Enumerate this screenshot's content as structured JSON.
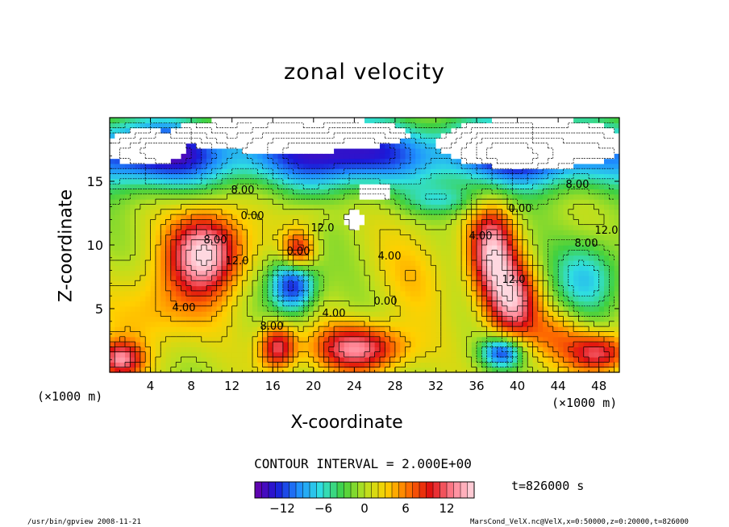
{
  "chart_data": {
    "type": "heatmap",
    "title": "zonal velocity",
    "xlabel": "X-coordinate",
    "ylabel": "Z-coordinate",
    "x_unit": "(×1000 m)",
    "y_unit": "(×1000 m)",
    "xlim": [
      0,
      50
    ],
    "ylim": [
      0,
      20
    ],
    "x_ticks": [
      "4",
      "8",
      "12",
      "16",
      "20",
      "24",
      "28",
      "32",
      "36",
      "40",
      "44",
      "48"
    ],
    "y_ticks": [
      "5",
      "10",
      "15"
    ],
    "contour_interval_label": "CONTOUR INTERVAL = 2.000E+00",
    "time_label": "t=826000 s",
    "colorbar": {
      "range": [
        -16,
        16
      ],
      "ticks": [
        "−12",
        "−6",
        "0",
        "6",
        "12"
      ],
      "colors": [
        "#6a00a8",
        "#1a1ad8",
        "#1f8fff",
        "#30e0e0",
        "#40d040",
        "#b8e020",
        "#ffd000",
        "#ff7000",
        "#e01010",
        "#ff8090",
        "#ffd8e0"
      ]
    },
    "contour_labels": [
      "8.00",
      "12.0",
      "0.00",
      "8.00",
      "12.0",
      "4.00",
      "8.00",
      "4.00",
      "0.00",
      "4.00",
      "4.00",
      "0.00",
      "12.0",
      "8.00",
      "12.0",
      "8.00",
      "0.00"
    ],
    "blobs": [
      {
        "x": 9.5,
        "z": 9.5,
        "v": 16,
        "rx": 3.6,
        "rz": 3.2
      },
      {
        "x": 37.5,
        "z": 9.5,
        "v": 14,
        "rx": 2.3,
        "rz": 3.6
      },
      {
        "x": 39.5,
        "z": 5.5,
        "v": 13,
        "rx": 2.5,
        "rz": 3.0
      },
      {
        "x": 24.5,
        "z": 1.9,
        "v": 13,
        "rx": 4.5,
        "rz": 1.9
      },
      {
        "x": 16.5,
        "z": 2.0,
        "v": 12,
        "rx": 1.8,
        "rz": 1.8
      },
      {
        "x": 18.5,
        "z": 9.5,
        "v": 11,
        "rx": 1.6,
        "rz": 1.6
      },
      {
        "x": 48.0,
        "z": 1.5,
        "v": 12,
        "rx": 3.0,
        "rz": 1.6
      },
      {
        "x": 1.0,
        "z": 1.0,
        "v": 12,
        "rx": 2.2,
        "rz": 1.4
      },
      {
        "x": 18.0,
        "z": 7.0,
        "v": -14,
        "rx": 2.2,
        "rz": 2.2
      },
      {
        "x": 38.5,
        "z": 1.6,
        "v": -12,
        "rx": 2.0,
        "rz": 1.2
      },
      {
        "x": 47.0,
        "z": 7.5,
        "v": -7,
        "rx": 3.5,
        "rz": 3.0
      },
      {
        "x": 20.0,
        "z": 12.5,
        "v": 2,
        "rx": 2.5,
        "rz": 1.2
      },
      {
        "x": 33.0,
        "z": 13.5,
        "v": -5,
        "rx": 4.0,
        "rz": 1.2
      },
      {
        "x": 5.0,
        "z": 5.0,
        "v": 5,
        "rx": 5.0,
        "rz": 3.5
      },
      {
        "x": 30.0,
        "z": 8.0,
        "v": 3,
        "rx": 4.0,
        "rz": 4.0
      },
      {
        "x": 44.0,
        "z": 3.0,
        "v": 5,
        "rx": 3.0,
        "rz": 2.0
      }
    ],
    "upper_jet": {
      "v": -15,
      "z_center": 17.2,
      "z_halfwidth": 2.6
    },
    "white_regions": [
      {
        "x": 3.5,
        "z": 17.7,
        "rx": 4.2,
        "rz": 1.4
      },
      {
        "x": 17.5,
        "z": 18.7,
        "rx": 12.0,
        "rz": 1.4
      },
      {
        "x": 41.5,
        "z": 18.0,
        "rx": 9.5,
        "rz": 2.0
      },
      {
        "x": 26.0,
        "z": 14.2,
        "rx": 1.6,
        "rz": 0.8
      },
      {
        "x": 24.0,
        "z": 12.0,
        "rx": 0.9,
        "rz": 1.0
      }
    ]
  },
  "footer": {
    "left": "/usr/bin/gpview   2008-11-21",
    "right": "MarsCond_VelX.nc@VelX,x=0:50000,z=0:20000,t=826000"
  }
}
